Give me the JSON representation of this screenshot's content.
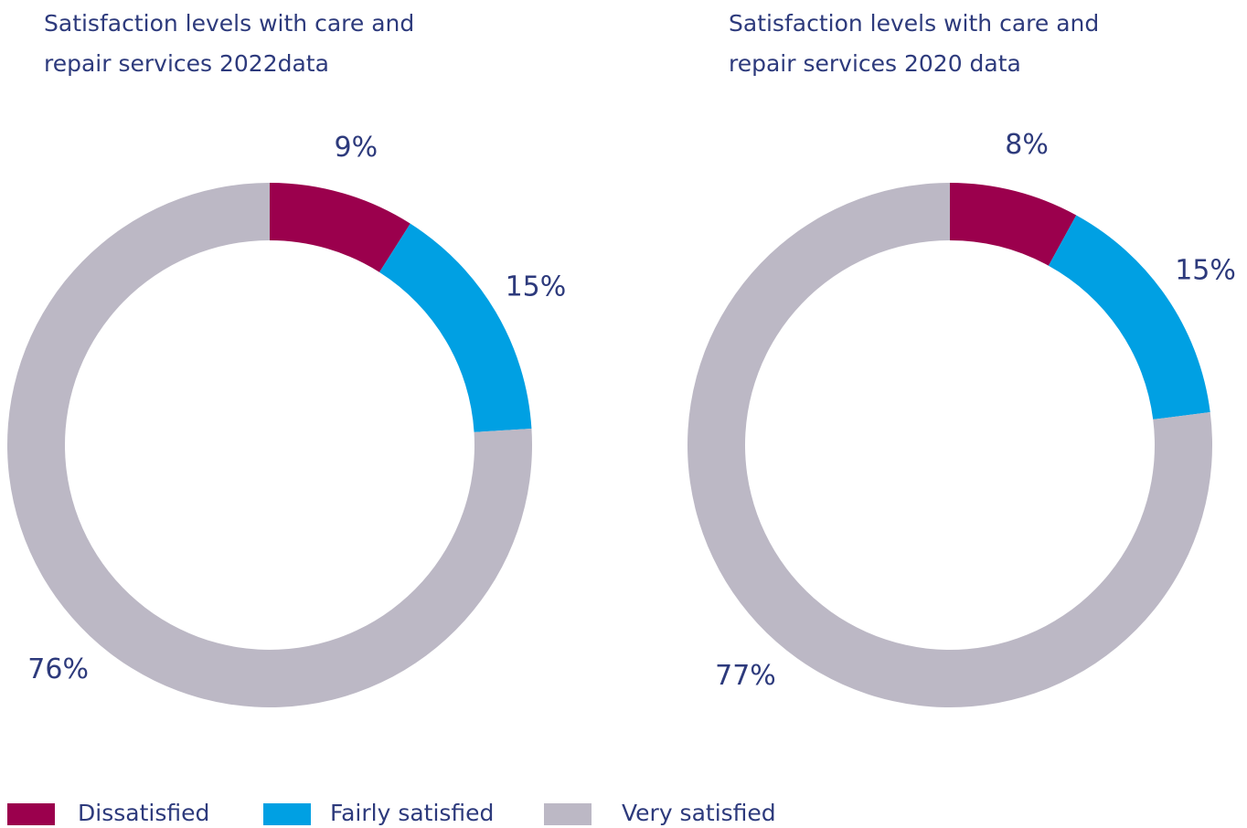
{
  "chart_data": [
    {
      "type": "pie",
      "title": "Satisfaction levels with care and repair services 2022data",
      "categories": [
        "Dissatisfied",
        "Fairly satisfied",
        "Very satisfied"
      ],
      "values": [
        9,
        15,
        76
      ],
      "value_labels": [
        "9%",
        "15%",
        "76%"
      ],
      "colors": [
        "#9b004d",
        "#00a0e3",
        "#bcb8c5"
      ]
    },
    {
      "type": "pie",
      "title": "Satisfaction levels with care and repair services 2020 data",
      "categories": [
        "Dissatisfied",
        "Fairly satisfied",
        "Very satisfied"
      ],
      "values": [
        8,
        15,
        77
      ],
      "value_labels": [
        "8%",
        "15%",
        "77%"
      ],
      "colors": [
        "#9b004d",
        "#00a0e3",
        "#bcb8c5"
      ]
    }
  ]
}
